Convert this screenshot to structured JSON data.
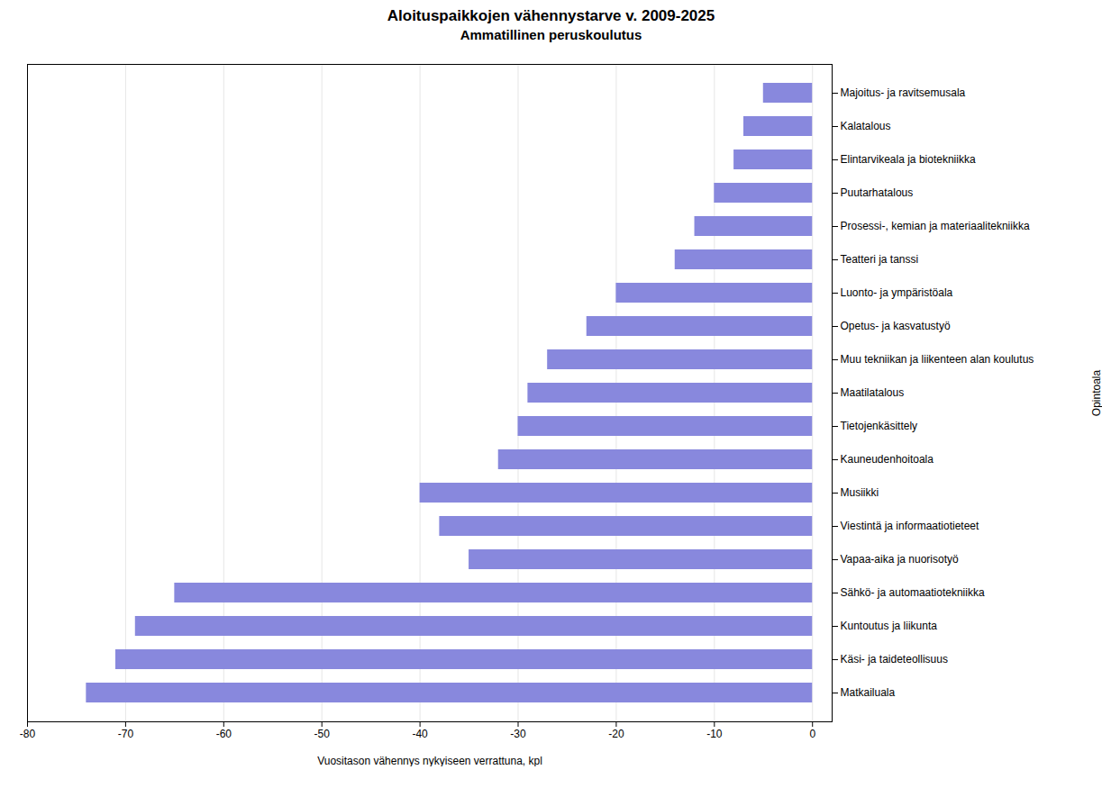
{
  "chart_data": {
    "type": "bar",
    "orientation": "horizontal",
    "title": "Aloituspaikkojen vähennystarve v. 2009-2025",
    "subtitle": "Ammatillinen peruskoulutus",
    "xlabel": "Vuositason vähennys nykyiseen verrattuna, kpl",
    "ylabel": "Opintoala",
    "categories": [
      "Majoitus- ja ravitsemusala",
      "Kalatalous",
      "Elintarvikeala ja biotekniikka",
      "Puutarhatalous",
      "Prosessi-, kemian ja materiaalitekniikka",
      "Teatteri ja tanssi",
      "Luonto- ja ympäristöala",
      "Opetus- ja kasvatustyö",
      "Muu tekniikan ja liikenteen alan koulutus",
      "Maatilatalous",
      "Tietojenkäsittely",
      "Kauneudenhoitoala",
      "Musiikki",
      "Viestintä ja informaatiotieteet",
      "Vapaa-aika ja nuorisotyö",
      "Sähkö- ja automaatiotekniikka",
      "Kuntoutus ja liikunta",
      "Käsi- ja taideteollisuus",
      "Matkailuala"
    ],
    "values": [
      -5,
      -7,
      -8,
      -10,
      -12,
      -14,
      -20,
      -23,
      -27,
      -29,
      -30,
      -32,
      -40,
      -38,
      -35,
      -65,
      -69,
      -71,
      -74
    ],
    "color": "#8888DD",
    "xlim": [
      -80,
      2
    ],
    "xticks": [
      -80,
      -70,
      -60,
      -50,
      -40,
      -30,
      -20,
      -10,
      0
    ],
    "grid": true
  }
}
